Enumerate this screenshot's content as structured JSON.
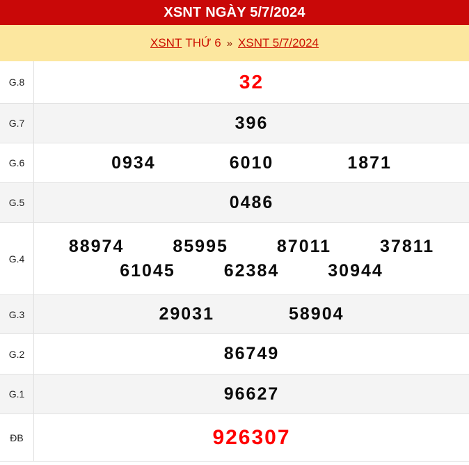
{
  "header": {
    "title": "XSNT NGÀY 5/7/2024"
  },
  "breadcrumb": {
    "region_link": "XSNT",
    "weekday": "THỨ 6",
    "separator": "»",
    "date_link": "XSNT 5/7/2024"
  },
  "results": {
    "rows": [
      {
        "label": "G.8",
        "numbers": [
          "32"
        ],
        "highlight": true
      },
      {
        "label": "G.7",
        "numbers": [
          "396"
        ]
      },
      {
        "label": "G.6",
        "numbers": [
          "0934",
          "6010",
          "1871"
        ]
      },
      {
        "label": "G.5",
        "numbers": [
          "0486"
        ]
      },
      {
        "label": "G.4",
        "lines": [
          [
            "88974",
            "85995",
            "87011",
            "37811"
          ],
          [
            "61045",
            "62384",
            "30944"
          ]
        ]
      },
      {
        "label": "G.3",
        "numbers": [
          "29031",
          "58904"
        ]
      },
      {
        "label": "G.2",
        "numbers": [
          "86749"
        ]
      },
      {
        "label": "G.1",
        "numbers": [
          "96627"
        ]
      },
      {
        "label": "ĐB",
        "numbers": [
          "926307"
        ],
        "highlight": true
      }
    ]
  },
  "colors": {
    "header_bg": "#C90808",
    "header_text": "#FFFFFF",
    "breadcrumb_bg": "#FCE79F",
    "link_red": "#CC1100",
    "number_black": "#0B0B0B",
    "number_highlight_red": "#FF0000",
    "row_alt_bg": "#F4F4F4",
    "divider": "#E2E2E2"
  }
}
